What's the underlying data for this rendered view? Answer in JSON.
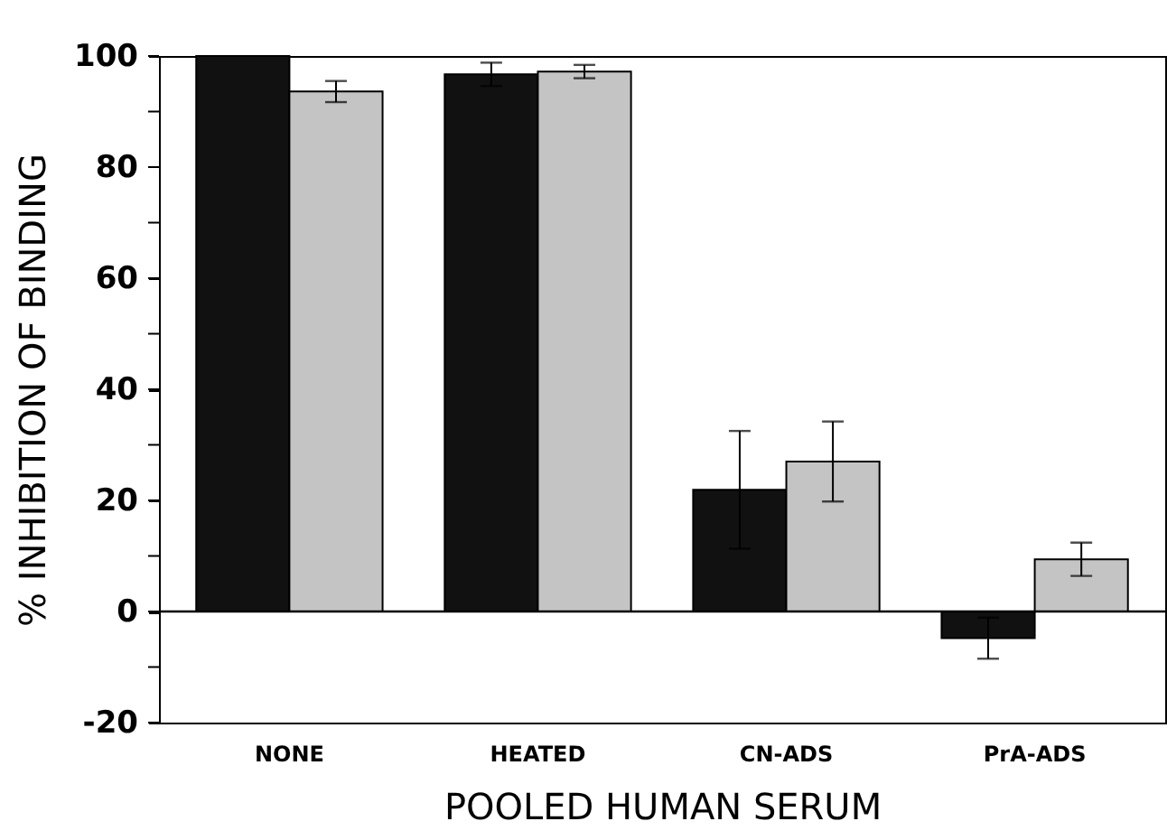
{
  "chart_data": {
    "type": "bar",
    "xlabel": "POOLED HUMAN SERUM",
    "ylabel": "% INHIBITION OF BINDING",
    "categories": [
      "NONE",
      "HEATED",
      "CN-ADS",
      "PrA-ADS"
    ],
    "series": [
      {
        "color": "#111111",
        "values": [
          100,
          96.7,
          21.9,
          -4.8
        ],
        "errors": [
          null,
          2.1,
          10.6,
          3.7
        ]
      },
      {
        "color": "#c4c4c4",
        "values": [
          93.6,
          97.2,
          27.0,
          9.4
        ],
        "errors": [
          1.9,
          1.2,
          7.2,
          3.0
        ]
      }
    ],
    "ylim": [
      -20,
      100
    ],
    "yticks": [
      -20,
      {
        "value": -10,
        "label": null
      },
      0,
      {
        "value": 10,
        "label": null
      },
      20,
      {
        "value": 30,
        "label": null
      },
      40,
      {
        "value": 50,
        "label": null
      },
      60,
      {
        "value": 70,
        "label": null
      },
      80,
      {
        "value": 90,
        "label": null
      },
      100
    ],
    "ref_lines": [
      {
        "axis": "y",
        "value": 0
      }
    ],
    "grid": false,
    "legend": false
  }
}
